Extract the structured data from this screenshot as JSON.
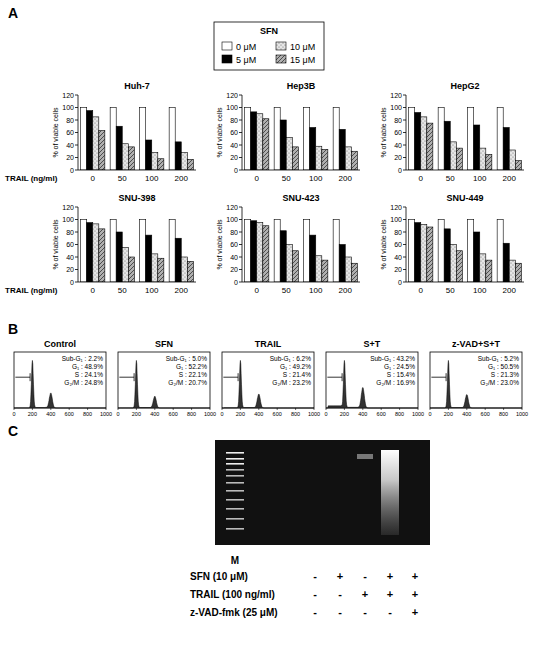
{
  "chart_data": [
    {
      "type": "bar",
      "title": "Huh-7",
      "x_label": "TRAIL (ng/ml)",
      "y_label": "% of viable cells",
      "categories": [
        "0",
        "50",
        "100",
        "200"
      ],
      "legend": "top",
      "series": [
        {
          "name": "0 μM",
          "color": "#ffffff",
          "values": [
            100,
            100,
            100,
            100
          ]
        },
        {
          "name": "5 μM",
          "color": "#000000",
          "values": [
            95,
            70,
            48,
            45
          ]
        },
        {
          "name": "10 μM",
          "color": "#e6e6e6",
          "values": [
            85,
            42,
            28,
            28
          ]
        },
        {
          "name": "15 μM",
          "color": "#b0b0b0",
          "values": [
            63,
            37,
            18,
            17
          ]
        }
      ],
      "ylim": [
        0,
        120
      ],
      "yticks": [
        0,
        20,
        40,
        60,
        80,
        100,
        120
      ]
    },
    {
      "type": "bar",
      "title": "Hep3B",
      "y_label": "% of viable cells",
      "categories": [
        "0",
        "50",
        "100",
        "200"
      ],
      "series": [
        {
          "color": "#ffffff",
          "values": [
            100,
            100,
            100,
            100
          ]
        },
        {
          "color": "#000000",
          "values": [
            93,
            80,
            68,
            65
          ]
        },
        {
          "color": "#e6e6e6",
          "values": [
            90,
            52,
            38,
            37
          ]
        },
        {
          "color": "#b0b0b0",
          "values": [
            82,
            37,
            33,
            30
          ]
        }
      ],
      "ylim": [
        0,
        120
      ],
      "yticks": [
        0,
        20,
        40,
        60,
        80,
        100,
        120
      ]
    },
    {
      "type": "bar",
      "title": "HepG2",
      "y_label": "% of viable cells",
      "categories": [
        "0",
        "50",
        "100",
        "200"
      ],
      "series": [
        {
          "color": "#ffffff",
          "values": [
            100,
            100,
            100,
            100
          ]
        },
        {
          "color": "#000000",
          "values": [
            92,
            78,
            72,
            68
          ]
        },
        {
          "color": "#e6e6e6",
          "values": [
            85,
            45,
            35,
            32
          ]
        },
        {
          "color": "#b0b0b0",
          "values": [
            75,
            35,
            25,
            15
          ]
        }
      ],
      "ylim": [
        0,
        120
      ],
      "yticks": [
        0,
        20,
        40,
        60,
        80,
        100,
        120
      ]
    },
    {
      "type": "bar",
      "title": "SNU-398",
      "x_label": "TRAIL (ng/ml)",
      "y_label": "% of viable cells",
      "categories": [
        "0",
        "50",
        "100",
        "200"
      ],
      "series": [
        {
          "color": "#ffffff",
          "values": [
            100,
            100,
            100,
            100
          ]
        },
        {
          "color": "#000000",
          "values": [
            95,
            80,
            75,
            70
          ]
        },
        {
          "color": "#e6e6e6",
          "values": [
            93,
            55,
            45,
            40
          ]
        },
        {
          "color": "#b0b0b0",
          "values": [
            85,
            40,
            38,
            33
          ]
        }
      ],
      "ylim": [
        0,
        120
      ],
      "yticks": [
        0,
        20,
        40,
        60,
        80,
        100,
        120
      ]
    },
    {
      "type": "bar",
      "title": "SNU-423",
      "y_label": "% of viable cells",
      "categories": [
        "0",
        "50",
        "100",
        "200"
      ],
      "series": [
        {
          "color": "#ffffff",
          "values": [
            100,
            100,
            100,
            100
          ]
        },
        {
          "color": "#000000",
          "values": [
            98,
            82,
            75,
            60
          ]
        },
        {
          "color": "#e6e6e6",
          "values": [
            95,
            60,
            42,
            40
          ]
        },
        {
          "color": "#b0b0b0",
          "values": [
            90,
            50,
            35,
            30
          ]
        }
      ],
      "ylim": [
        0,
        120
      ],
      "yticks": [
        0,
        20,
        40,
        60,
        80,
        100,
        120
      ]
    },
    {
      "type": "bar",
      "title": "SNU-449",
      "y_label": "% of viable cells",
      "categories": [
        "0",
        "50",
        "100",
        "200"
      ],
      "series": [
        {
          "color": "#ffffff",
          "values": [
            100,
            100,
            100,
            100
          ]
        },
        {
          "color": "#000000",
          "values": [
            95,
            85,
            80,
            62
          ]
        },
        {
          "color": "#e6e6e6",
          "values": [
            92,
            60,
            45,
            35
          ]
        },
        {
          "color": "#b0b0b0",
          "values": [
            88,
            50,
            35,
            30
          ]
        }
      ],
      "ylim": [
        0,
        120
      ],
      "yticks": [
        0,
        20,
        40,
        60,
        80,
        100,
        120
      ]
    }
  ],
  "panel_a": {
    "label": "A",
    "legend_title": "SFN"
  },
  "panel_b": {
    "label": "B",
    "xticks": [
      0,
      200,
      400,
      600,
      800,
      1000
    ],
    "stat_labels": [
      "Sub-G₁ :",
      "G₁ :",
      "S :",
      "G₂/M :"
    ],
    "plots": [
      {
        "title": "Control",
        "stats": [
          "2.2%",
          "48.9%",
          "24.1%",
          "24.8%"
        ]
      },
      {
        "title": "SFN",
        "stats": [
          "5.0%",
          "52.2%",
          "22.1%",
          "20.7%"
        ]
      },
      {
        "title": "TRAIL",
        "stats": [
          "6.2%",
          "49.2%",
          "21.4%",
          "23.2%"
        ]
      },
      {
        "title": "S+T",
        "stats": [
          "43.2%",
          "24.5%",
          "15.4%",
          "16.9%"
        ]
      },
      {
        "title": "z-VAD+S+T",
        "stats": [
          "5.2%",
          "50.5%",
          "21.3%",
          "23.0%"
        ]
      }
    ]
  },
  "panel_c": {
    "label": "C",
    "marker_label": "M",
    "rows": [
      {
        "label": "SFN (10 μM)",
        "cells": [
          "-",
          "+",
          "-",
          "+",
          "+"
        ]
      },
      {
        "label": "TRAIL (100 ng/ml)",
        "cells": [
          "-",
          "-",
          "+",
          "+",
          "+"
        ]
      },
      {
        "label": "z-VAD-fmk (25 μM)",
        "cells": [
          "-",
          "-",
          "-",
          "-",
          "+"
        ]
      }
    ]
  }
}
